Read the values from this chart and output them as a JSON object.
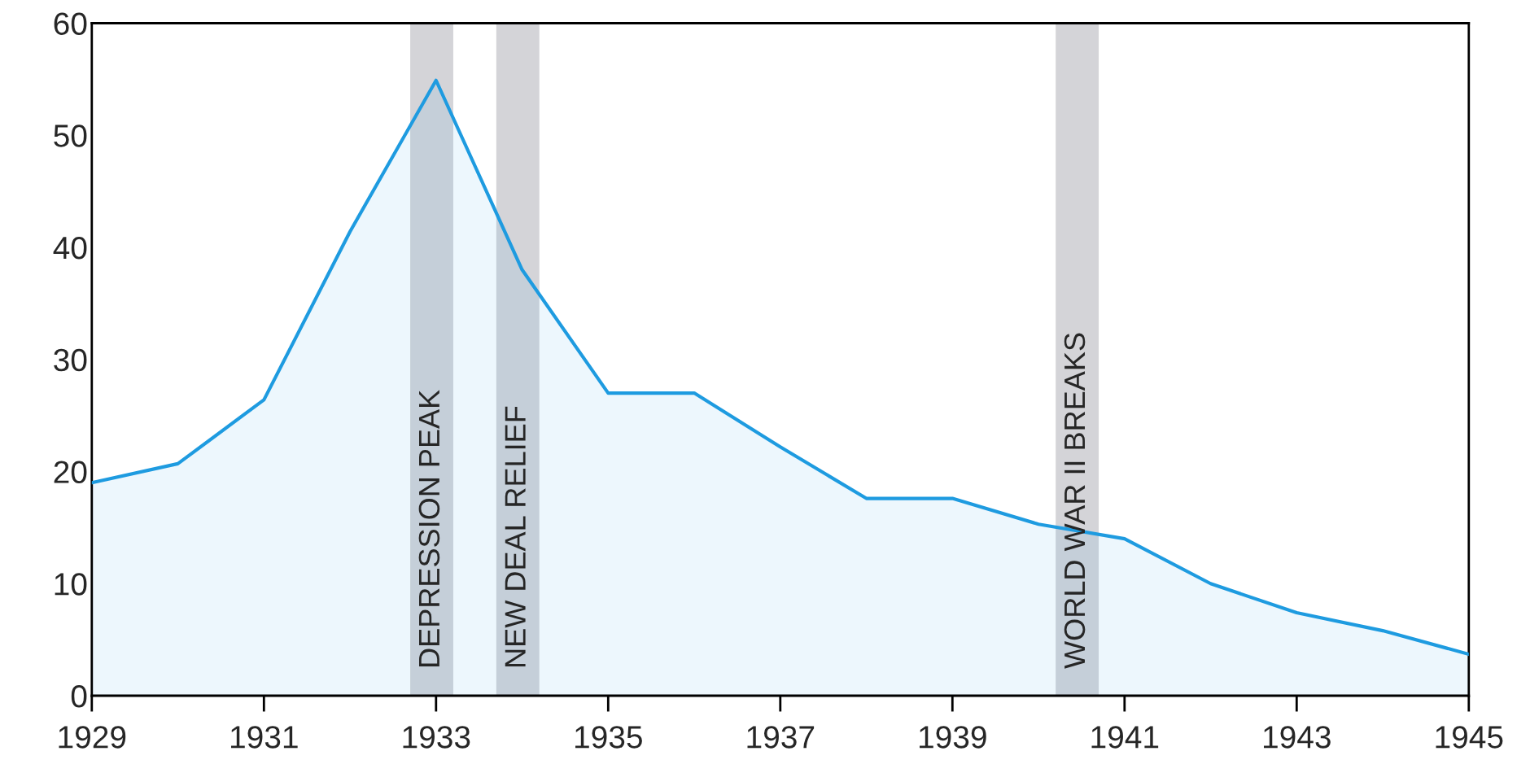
{
  "chart_data": {
    "type": "area",
    "x": [
      1929,
      1930,
      1931,
      1932,
      1933,
      1934,
      1935,
      1936,
      1937,
      1938,
      1939,
      1940,
      1941,
      1942,
      1943,
      1944,
      1945
    ],
    "series": [
      {
        "color": "#1e9be0",
        "values": [
          19,
          20.7,
          26.4,
          41.4,
          54.9,
          38,
          27,
          27,
          22.2,
          17.6,
          17.6,
          15.3,
          14,
          10,
          7.4,
          5.8,
          3.7
        ]
      }
    ],
    "xlim": [
      1929,
      1945
    ],
    "xticks": [
      1929,
      1931,
      1933,
      1935,
      1937,
      1939,
      1941,
      1943,
      1945
    ],
    "ylim": [
      0,
      60
    ],
    "yticks": [
      0,
      10,
      20,
      30,
      40,
      50,
      60
    ],
    "bands": [
      {
        "axis": "x",
        "from": 1932.7,
        "to": 1933.2,
        "label": "DEPRESSION PEAK",
        "color": "#d4d4d8"
      },
      {
        "axis": "x",
        "from": 1933.7,
        "to": 1934.2,
        "label": "NEW DEAL RELIEF",
        "color": "#d4d4d8"
      },
      {
        "axis": "x",
        "from": 1940.2,
        "to": 1940.7,
        "label": "WORLD WAR II BREAKS",
        "color": "#d4d4d8"
      }
    ],
    "grid": false,
    "legend": false
  }
}
